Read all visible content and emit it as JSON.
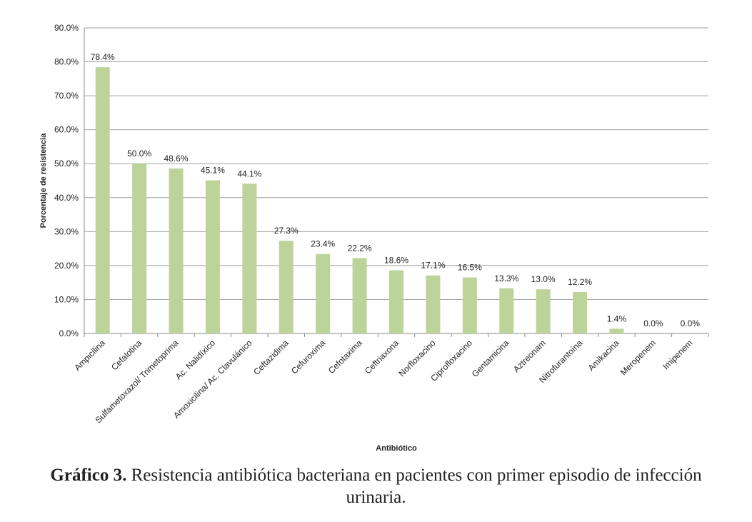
{
  "chart_data": {
    "type": "bar",
    "categories": [
      "Ampicilina",
      "Cefalotina",
      "Sulfametoxazol/ Trimetoprima",
      "Ac. Nalidíxico",
      "Amoxicilina/ Ac. Clavulánico",
      "Ceftazidima",
      "Cefuroxima",
      "Cefotaxima",
      "Ceftriaxona",
      "Norfloxacino",
      "Ciprofloxacino",
      "Gentamicina",
      "Aztreonam",
      "Nitrofurantoína",
      "Amikacina",
      "Meropenem",
      "Imipenem"
    ],
    "values": [
      78.4,
      50.0,
      48.6,
      45.1,
      44.1,
      27.3,
      23.4,
      22.2,
      18.6,
      17.1,
      16.5,
      13.3,
      13.0,
      12.2,
      1.4,
      0.0,
      0.0
    ],
    "data_labels": [
      "78.4%",
      "50.0%",
      "48.6%",
      "45.1%",
      "44.1%",
      "27.3%",
      "23.4%",
      "22.2%",
      "18.6%",
      "17.1%",
      "16.5%",
      "13.3%",
      "13.0%",
      "12.2%",
      "1.4%",
      "0.0%",
      "0.0%"
    ],
    "y_ticks": [
      "0.0%",
      "10.0%",
      "20.0%",
      "30.0%",
      "40.0%",
      "50.0%",
      "60.0%",
      "70.0%",
      "80.0%",
      "90.0%"
    ],
    "ylim": [
      0,
      90
    ],
    "ylabel": "Porcentaje de resistencia",
    "xlabel": "Antibiótico",
    "grid": true,
    "bar_color": "#bcd39a",
    "gridline_color": "#a0a0a0"
  },
  "caption": {
    "bold": "Gráfico 3.",
    "text": " Resistencia antibiótica bacteriana en pacientes con primer episodio de infección urinaria."
  }
}
